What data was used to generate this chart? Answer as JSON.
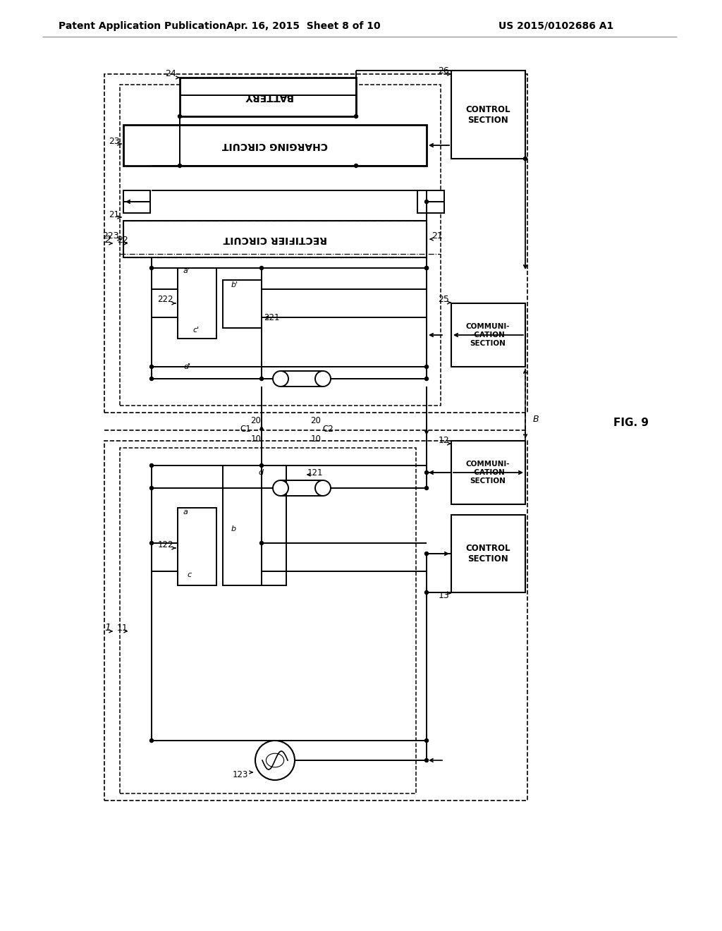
{
  "header_left": "Patent Application Publication",
  "header_center": "Apr. 16, 2015  Sheet 8 of 10",
  "header_right": "US 2015/0102686 A1",
  "fig_label": "FIG. 9",
  "bg": "#ffffff"
}
